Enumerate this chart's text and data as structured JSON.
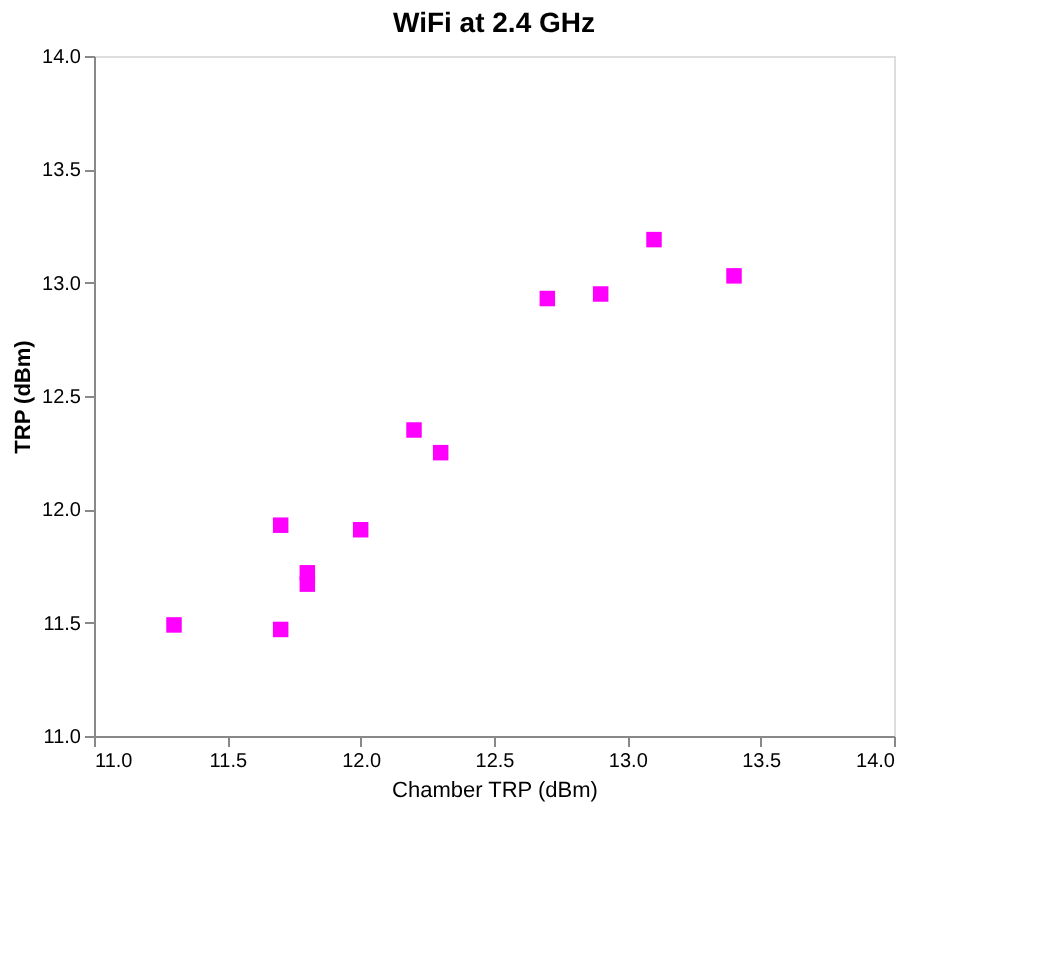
{
  "chart_data": {
    "type": "scatter",
    "title": "WiFi at 2.4 GHz",
    "xlabel": "Chamber TRP (dBm)",
    "ylabel": "TRP (dBm)",
    "x": [
      11.3,
      11.7,
      11.7,
      11.8,
      11.8,
      12.0,
      12.2,
      12.3,
      12.7,
      12.9,
      13.1,
      13.4
    ],
    "series": [
      {
        "color": "#ff00ff",
        "values": [
          11.49,
          11.47,
          11.93,
          11.72,
          11.67,
          11.91,
          12.35,
          12.25,
          12.93,
          12.95,
          13.19,
          13.03
        ]
      }
    ],
    "xlim": [
      11.0,
      14.0
    ],
    "ylim": [
      11.0,
      14.0
    ],
    "xticks": [
      {
        "value": 11,
        "label": "11.0"
      },
      {
        "value": 11.5,
        "label": "11.5"
      },
      {
        "value": 12,
        "label": "12.0"
      },
      {
        "value": 12.5,
        "label": "12.5"
      },
      {
        "value": 13,
        "label": "13.0"
      },
      {
        "value": 13.5,
        "label": "13.5"
      },
      {
        "value": 14,
        "label": "14.0"
      }
    ],
    "yticks": [
      {
        "value": 11,
        "label": "11.0"
      },
      {
        "value": 11.5,
        "label": "11.5"
      },
      {
        "value": 12,
        "label": "12.0"
      },
      {
        "value": 12.5,
        "label": "12.5"
      },
      {
        "value": 13,
        "label": "13.0"
      },
      {
        "value": 13.5,
        "label": "13.5"
      },
      {
        "value": 14,
        "label": "14.0"
      }
    ],
    "grid": false,
    "legend": false,
    "marker": "square"
  }
}
